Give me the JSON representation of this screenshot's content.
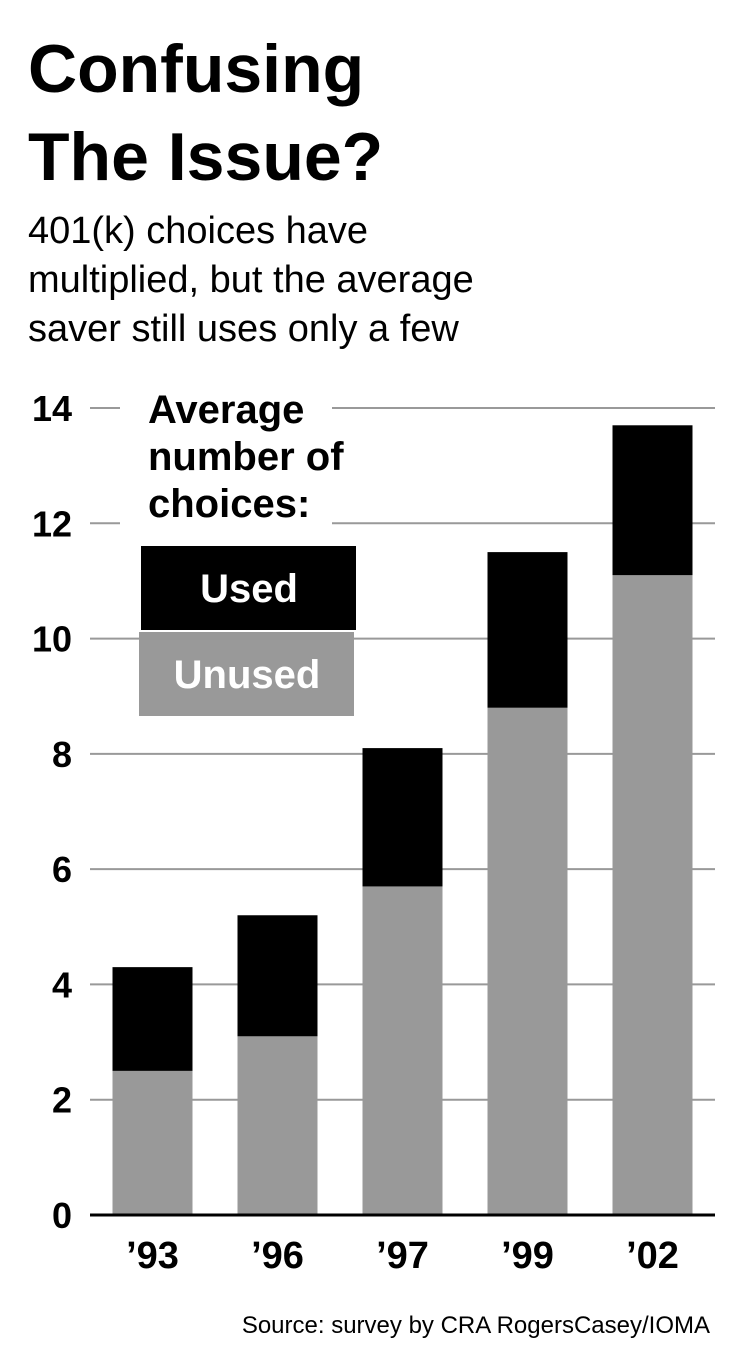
{
  "chart_data": {
    "type": "stacked_bar",
    "title": [
      "Confusing",
      "The Issue?"
    ],
    "subtitle": [
      "401(k) choices have",
      "multiplied, but the average",
      "saver still uses only a few"
    ],
    "legend_title": [
      "Average",
      "number of",
      "choices:"
    ],
    "categories": [
      "’93",
      "’96",
      "’97",
      "’99",
      "’02"
    ],
    "series": [
      {
        "name": "Unused",
        "color": "#999999",
        "values": [
          2.5,
          3.1,
          5.7,
          8.8,
          11.1
        ]
      },
      {
        "name": "Used",
        "color": "#000000",
        "values": [
          1.8,
          2.1,
          2.4,
          2.7,
          2.6
        ]
      }
    ],
    "ylim": [
      0,
      14
    ],
    "yticks": [
      0,
      2,
      4,
      6,
      8,
      10,
      12,
      14
    ],
    "grid": true,
    "legend": "top-left",
    "source": "Source: survey by CRA RogersCasey/IOMA"
  }
}
